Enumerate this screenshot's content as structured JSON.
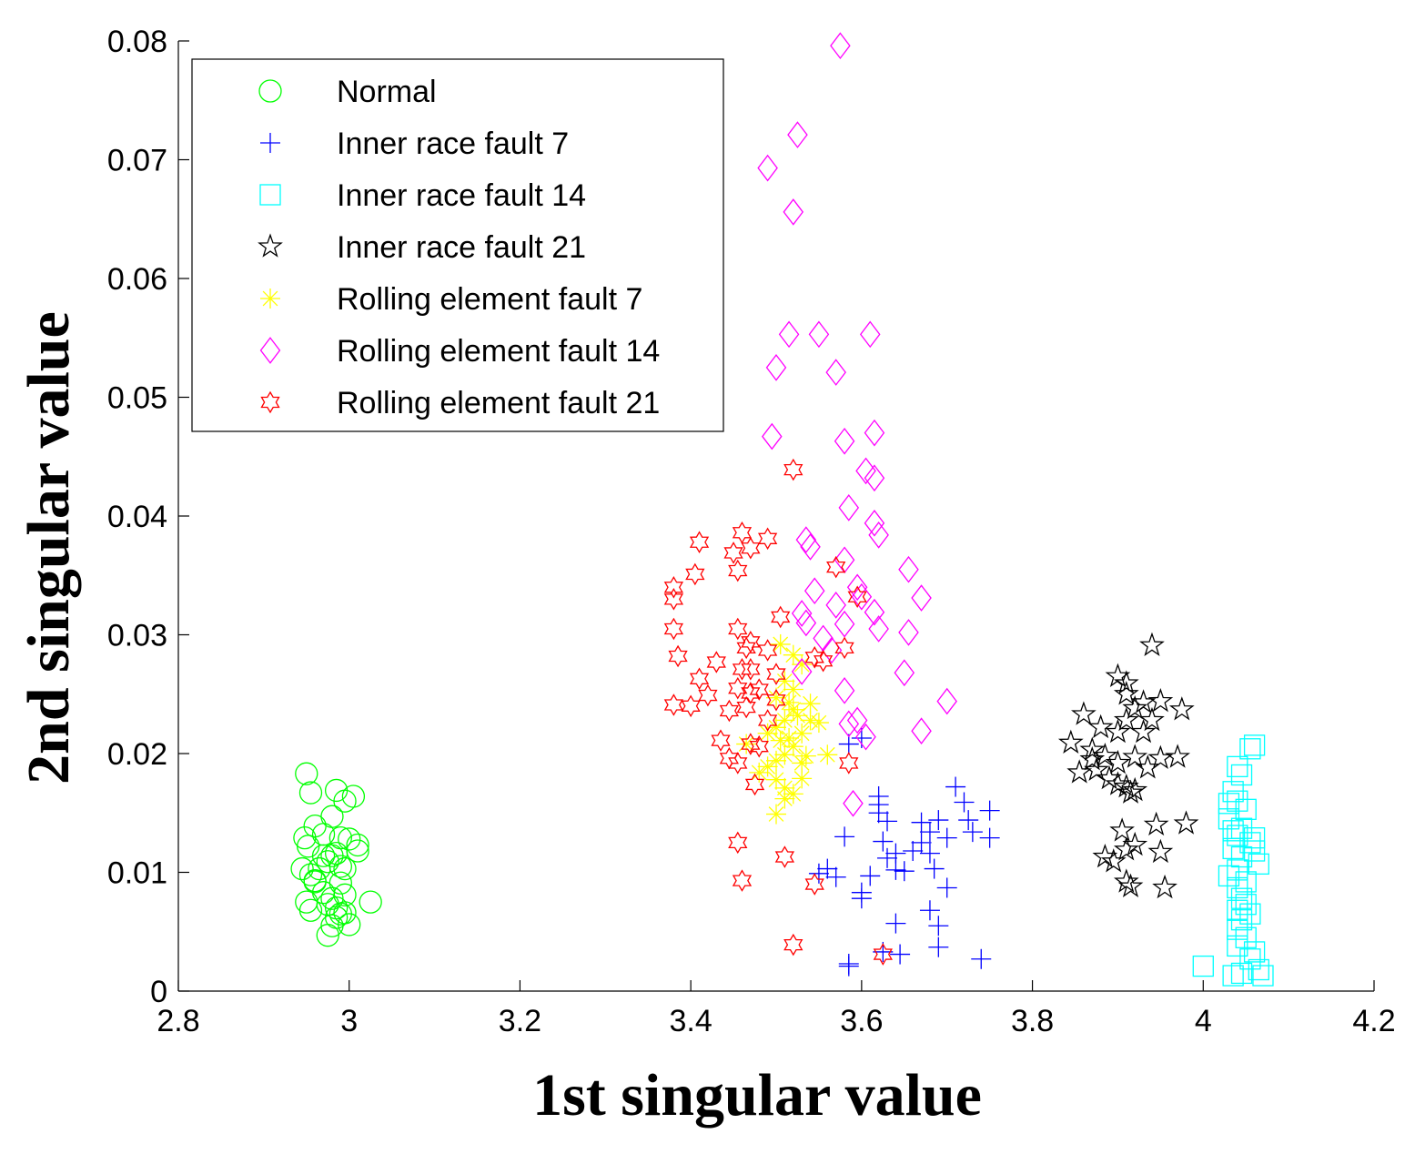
{
  "chart_data": {
    "type": "scatter",
    "title": "",
    "xlabel": "1st singular value",
    "ylabel": "2nd singular value",
    "xlim": [
      2.8,
      4.2
    ],
    "ylim": [
      0,
      0.08
    ],
    "xticks": [
      "2.8",
      "3",
      "3.2",
      "3.4",
      "3.6",
      "3.8",
      "4",
      "4.2"
    ],
    "yticks": [
      "0",
      "0.01",
      "0.02",
      "0.03",
      "0.04",
      "0.05",
      "0.06",
      "0.07",
      "0.08"
    ],
    "grid": false,
    "legend_position": "top-left",
    "series": [
      {
        "name": "Normal",
        "marker": "circle",
        "color": "#00ff00",
        "points": [
          [
            2.95,
            0.0183
          ],
          [
            2.955,
            0.0167
          ],
          [
            2.985,
            0.0169
          ],
          [
            2.995,
            0.016
          ],
          [
            3.005,
            0.0164
          ],
          [
            2.948,
            0.0129
          ],
          [
            2.952,
            0.0122
          ],
          [
            2.96,
            0.0139
          ],
          [
            2.97,
            0.0132
          ],
          [
            2.98,
            0.0147
          ],
          [
            2.99,
            0.0129
          ],
          [
            3.0,
            0.0128
          ],
          [
            3.01,
            0.0123
          ],
          [
            3.01,
            0.0118
          ],
          [
            2.945,
            0.0103
          ],
          [
            2.955,
            0.0098
          ],
          [
            2.96,
            0.0093
          ],
          [
            2.965,
            0.0103
          ],
          [
            2.97,
            0.0114
          ],
          [
            2.975,
            0.0109
          ],
          [
            2.98,
            0.0114
          ],
          [
            2.985,
            0.0116
          ],
          [
            2.99,
            0.0105
          ],
          [
            2.995,
            0.0103
          ],
          [
            2.96,
            0.0092
          ],
          [
            2.97,
            0.0083
          ],
          [
            2.98,
            0.0078
          ],
          [
            2.99,
            0.0091
          ],
          [
            2.995,
            0.0081
          ],
          [
            2.95,
            0.0075
          ],
          [
            2.955,
            0.0068
          ],
          [
            2.975,
            0.0073
          ],
          [
            2.985,
            0.007
          ],
          [
            2.99,
            0.0065
          ],
          [
            2.995,
            0.0066
          ],
          [
            3.0,
            0.0056
          ],
          [
            2.98,
            0.0055
          ],
          [
            2.975,
            0.0047
          ],
          [
            3.025,
            0.0075
          ],
          [
            2.985,
            0.0062
          ]
        ]
      },
      {
        "name": "Inner race fault 7",
        "marker": "plus",
        "color": "#0000ff",
        "points": [
          [
            3.585,
            0.0208
          ],
          [
            3.6,
            0.0213
          ],
          [
            3.62,
            0.0164
          ],
          [
            3.62,
            0.0157
          ],
          [
            3.63,
            0.0143
          ],
          [
            3.625,
            0.0126
          ],
          [
            3.62,
            0.015
          ],
          [
            3.58,
            0.013
          ],
          [
            3.55,
            0.0099
          ],
          [
            3.56,
            0.0103
          ],
          [
            3.57,
            0.0096
          ],
          [
            3.6,
            0.0078
          ],
          [
            3.61,
            0.0097
          ],
          [
            3.63,
            0.0112
          ],
          [
            3.64,
            0.0116
          ],
          [
            3.64,
            0.0102
          ],
          [
            3.65,
            0.0101
          ],
          [
            3.66,
            0.0118
          ],
          [
            3.67,
            0.0142
          ],
          [
            3.67,
            0.0125
          ],
          [
            3.68,
            0.0134
          ],
          [
            3.68,
            0.0116
          ],
          [
            3.685,
            0.0103
          ],
          [
            3.69,
            0.0144
          ],
          [
            3.7,
            0.0129
          ],
          [
            3.71,
            0.0172
          ],
          [
            3.72,
            0.0159
          ],
          [
            3.725,
            0.0144
          ],
          [
            3.73,
            0.0134
          ],
          [
            3.75,
            0.0152
          ],
          [
            3.75,
            0.0129
          ],
          [
            3.64,
            0.0057
          ],
          [
            3.68,
            0.0068
          ],
          [
            3.69,
            0.0055
          ],
          [
            3.69,
            0.0037
          ],
          [
            3.645,
            0.0031
          ],
          [
            3.625,
            0.0033
          ],
          [
            3.585,
            0.0021
          ],
          [
            3.585,
            0.0023
          ],
          [
            3.74,
            0.0027
          ],
          [
            3.7,
            0.0087
          ],
          [
            3.6,
            0.0083
          ]
        ]
      },
      {
        "name": "Inner race fault 14",
        "marker": "square",
        "color": "#00ffff",
        "points": [
          [
            4.06,
            0.0207
          ],
          [
            4.055,
            0.0204
          ],
          [
            4.04,
            0.0189
          ],
          [
            4.045,
            0.0182
          ],
          [
            4.035,
            0.0168
          ],
          [
            4.04,
            0.016
          ],
          [
            4.03,
            0.0158
          ],
          [
            4.05,
            0.0153
          ],
          [
            4.03,
            0.0145
          ],
          [
            4.045,
            0.0137
          ],
          [
            4.04,
            0.0131
          ],
          [
            4.055,
            0.0125
          ],
          [
            4.035,
            0.012
          ],
          [
            4.06,
            0.0118
          ],
          [
            4.045,
            0.0113
          ],
          [
            4.065,
            0.0107
          ],
          [
            4.04,
            0.0102
          ],
          [
            4.03,
            0.0097
          ],
          [
            4.05,
            0.0092
          ],
          [
            4.04,
            0.0087
          ],
          [
            4.045,
            0.0078
          ],
          [
            4.05,
            0.0073
          ],
          [
            4.04,
            0.0068
          ],
          [
            4.055,
            0.0065
          ],
          [
            4.045,
            0.006
          ],
          [
            4.04,
            0.0052
          ],
          [
            4.05,
            0.0045
          ],
          [
            4.04,
            0.0038
          ],
          [
            4.06,
            0.0033
          ],
          [
            4.055,
            0.0027
          ],
          [
            4.065,
            0.0018
          ],
          [
            4.045,
            0.0015
          ],
          [
            4.07,
            0.0013
          ],
          [
            4.0,
            0.0021
          ],
          [
            4.035,
            0.0013
          ],
          [
            4.06,
            0.0129
          ],
          [
            4.035,
            0.0135
          ]
        ]
      },
      {
        "name": "Inner race fault 21",
        "marker": "pentagram",
        "color": "#000000",
        "points": [
          [
            3.94,
            0.0291
          ],
          [
            3.9,
            0.0265
          ],
          [
            3.91,
            0.025
          ],
          [
            3.92,
            0.0238
          ],
          [
            3.93,
            0.0243
          ],
          [
            3.95,
            0.0244
          ],
          [
            3.975,
            0.0237
          ],
          [
            3.86,
            0.0233
          ],
          [
            3.88,
            0.0222
          ],
          [
            3.9,
            0.0218
          ],
          [
            3.91,
            0.0228
          ],
          [
            3.93,
            0.0218
          ],
          [
            3.94,
            0.0228
          ],
          [
            3.845,
            0.0209
          ],
          [
            3.87,
            0.0203
          ],
          [
            3.885,
            0.0198
          ],
          [
            3.9,
            0.0192
          ],
          [
            3.92,
            0.0197
          ],
          [
            3.935,
            0.0188
          ],
          [
            3.95,
            0.0196
          ],
          [
            3.97,
            0.0197
          ],
          [
            3.855,
            0.0184
          ],
          [
            3.875,
            0.0186
          ],
          [
            3.89,
            0.0179
          ],
          [
            3.9,
            0.0174
          ],
          [
            3.91,
            0.0172
          ],
          [
            3.915,
            0.0167
          ],
          [
            3.92,
            0.0169
          ],
          [
            3.905,
            0.0135
          ],
          [
            3.92,
            0.0123
          ],
          [
            3.945,
            0.014
          ],
          [
            3.98,
            0.0141
          ],
          [
            3.885,
            0.0113
          ],
          [
            3.895,
            0.0109
          ],
          [
            3.91,
            0.0119
          ],
          [
            3.95,
            0.0117
          ],
          [
            3.91,
            0.0092
          ],
          [
            3.915,
            0.0088
          ],
          [
            3.955,
            0.0087
          ],
          [
            3.91,
            0.0259
          ],
          [
            3.87,
            0.0195
          ]
        ]
      },
      {
        "name": "Rolling element fault 7",
        "marker": "asterisk",
        "color": "#ffff00",
        "points": [
          [
            3.505,
            0.0292
          ],
          [
            3.52,
            0.0283
          ],
          [
            3.53,
            0.0275
          ],
          [
            3.51,
            0.0261
          ],
          [
            3.5,
            0.0247
          ],
          [
            3.515,
            0.0243
          ],
          [
            3.52,
            0.0237
          ],
          [
            3.54,
            0.0242
          ],
          [
            3.525,
            0.0232
          ],
          [
            3.51,
            0.0228
          ],
          [
            3.5,
            0.0222
          ],
          [
            3.49,
            0.0217
          ],
          [
            3.505,
            0.0211
          ],
          [
            3.515,
            0.0213
          ],
          [
            3.53,
            0.0217
          ],
          [
            3.54,
            0.0228
          ],
          [
            3.55,
            0.0226
          ],
          [
            3.52,
            0.0206
          ],
          [
            3.51,
            0.0199
          ],
          [
            3.5,
            0.0194
          ],
          [
            3.49,
            0.0189
          ],
          [
            3.53,
            0.0192
          ],
          [
            3.56,
            0.0199
          ],
          [
            3.5,
            0.0178
          ],
          [
            3.51,
            0.0171
          ],
          [
            3.52,
            0.0166
          ],
          [
            3.53,
            0.0179
          ],
          [
            3.48,
            0.0184
          ],
          [
            3.465,
            0.0208
          ],
          [
            3.5,
            0.0149
          ],
          [
            3.51,
            0.0162
          ],
          [
            3.535,
            0.0198
          ],
          [
            3.52,
            0.0254
          ]
        ]
      },
      {
        "name": "Rolling element fault 14",
        "marker": "diamond",
        "color": "#ff00ff",
        "points": [
          [
            3.575,
            0.0796
          ],
          [
            3.525,
            0.0721
          ],
          [
            3.49,
            0.0693
          ],
          [
            3.52,
            0.0656
          ],
          [
            3.515,
            0.0553
          ],
          [
            3.55,
            0.0553
          ],
          [
            3.61,
            0.0553
          ],
          [
            3.5,
            0.0525
          ],
          [
            3.57,
            0.0521
          ],
          [
            3.495,
            0.0467
          ],
          [
            3.58,
            0.0463
          ],
          [
            3.615,
            0.047
          ],
          [
            3.605,
            0.0438
          ],
          [
            3.615,
            0.0432
          ],
          [
            3.585,
            0.0407
          ],
          [
            3.615,
            0.0394
          ],
          [
            3.62,
            0.0384
          ],
          [
            3.535,
            0.038
          ],
          [
            3.54,
            0.0374
          ],
          [
            3.58,
            0.0363
          ],
          [
            3.655,
            0.0355
          ],
          [
            3.545,
            0.0337
          ],
          [
            3.595,
            0.034
          ],
          [
            3.6,
            0.0332
          ],
          [
            3.67,
            0.0331
          ],
          [
            3.57,
            0.0325
          ],
          [
            3.615,
            0.0319
          ],
          [
            3.53,
            0.0318
          ],
          [
            3.535,
            0.031
          ],
          [
            3.58,
            0.0309
          ],
          [
            3.62,
            0.0305
          ],
          [
            3.655,
            0.0302
          ],
          [
            3.555,
            0.0297
          ],
          [
            3.565,
            0.0287
          ],
          [
            3.53,
            0.0269
          ],
          [
            3.65,
            0.0268
          ],
          [
            3.58,
            0.0253
          ],
          [
            3.7,
            0.0244
          ],
          [
            3.595,
            0.0228
          ],
          [
            3.585,
            0.0225
          ],
          [
            3.605,
            0.0214
          ],
          [
            3.67,
            0.0219
          ],
          [
            3.59,
            0.0158
          ]
        ]
      },
      {
        "name": "Rolling element fault 21",
        "marker": "hexagram",
        "color": "#ff0000",
        "points": [
          [
            3.52,
            0.0439
          ],
          [
            3.46,
            0.0386
          ],
          [
            3.45,
            0.0369
          ],
          [
            3.41,
            0.0378
          ],
          [
            3.49,
            0.0381
          ],
          [
            3.47,
            0.0373
          ],
          [
            3.455,
            0.0354
          ],
          [
            3.405,
            0.0351
          ],
          [
            3.38,
            0.034
          ],
          [
            3.38,
            0.033
          ],
          [
            3.57,
            0.0357
          ],
          [
            3.595,
            0.0332
          ],
          [
            3.505,
            0.0315
          ],
          [
            3.38,
            0.0305
          ],
          [
            3.455,
            0.0305
          ],
          [
            3.465,
            0.0289
          ],
          [
            3.47,
            0.0294
          ],
          [
            3.49,
            0.0287
          ],
          [
            3.545,
            0.0281
          ],
          [
            3.555,
            0.0278
          ],
          [
            3.58,
            0.0289
          ],
          [
            3.385,
            0.0282
          ],
          [
            3.43,
            0.0277
          ],
          [
            3.46,
            0.0271
          ],
          [
            3.47,
            0.0271
          ],
          [
            3.5,
            0.0267
          ],
          [
            3.41,
            0.0263
          ],
          [
            3.42,
            0.0249
          ],
          [
            3.455,
            0.0255
          ],
          [
            3.47,
            0.0251
          ],
          [
            3.48,
            0.0254
          ],
          [
            3.5,
            0.0245
          ],
          [
            3.38,
            0.0241
          ],
          [
            3.4,
            0.024
          ],
          [
            3.445,
            0.0236
          ],
          [
            3.465,
            0.0239
          ],
          [
            3.49,
            0.0228
          ],
          [
            3.435,
            0.0211
          ],
          [
            3.47,
            0.0208
          ],
          [
            3.48,
            0.0206
          ],
          [
            3.445,
            0.0196
          ],
          [
            3.455,
            0.0192
          ],
          [
            3.585,
            0.0192
          ],
          [
            3.475,
            0.0174
          ],
          [
            3.455,
            0.0125
          ],
          [
            3.51,
            0.0113
          ],
          [
            3.46,
            0.0093
          ],
          [
            3.545,
            0.009
          ],
          [
            3.52,
            0.0039
          ],
          [
            3.625,
            0.0031
          ]
        ]
      }
    ]
  }
}
